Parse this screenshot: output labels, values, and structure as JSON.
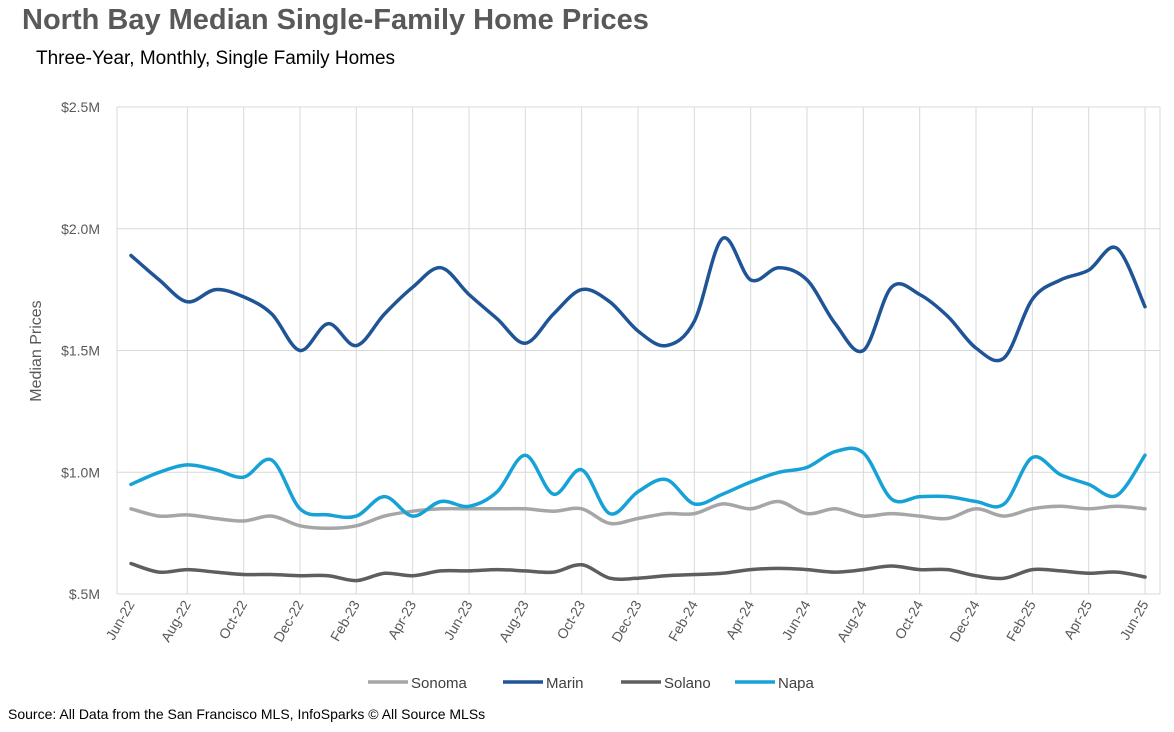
{
  "title": "North Bay Median Single-Family Home Prices",
  "subtitle": "Three-Year, Monthly, Single Family Homes",
  "source": "Source: All Data from the San Francisco MLS, InfoSparks © All Source MLSs",
  "chart_data": {
    "type": "line",
    "title": "North Bay Median Single-Family Home Prices",
    "subtitle": "Three-Year, Monthly, Single Family Homes",
    "ylabel": "Median Prices",
    "xlabel": "",
    "ylim": [
      500000,
      2500000
    ],
    "yticks": [
      {
        "value": 500000,
        "label": "$.5M"
      },
      {
        "value": 1000000,
        "label": "$1.0M"
      },
      {
        "value": 1500000,
        "label": "$1.5M"
      },
      {
        "value": 2000000,
        "label": "$2.0M"
      },
      {
        "value": 2500000,
        "label": "$2.5M"
      }
    ],
    "grid": true,
    "legend_position": "bottom",
    "x": [
      "Jun-22",
      "Jul-22",
      "Aug-22",
      "Sep-22",
      "Oct-22",
      "Nov-22",
      "Dec-22",
      "Jan-23",
      "Feb-23",
      "Mar-23",
      "Apr-23",
      "May-23",
      "Jun-23",
      "Jul-23",
      "Aug-23",
      "Sep-23",
      "Oct-23",
      "Nov-23",
      "Dec-23",
      "Jan-24",
      "Feb-24",
      "Mar-24",
      "Apr-24",
      "May-24",
      "Jun-24",
      "Jul-24",
      "Aug-24",
      "Sep-24",
      "Oct-24",
      "Nov-24",
      "Dec-24",
      "Jan-25",
      "Feb-25",
      "Mar-25",
      "Apr-25",
      "May-25",
      "Jun-25"
    ],
    "xtick_labels": [
      "Jun-22",
      "Aug-22",
      "Oct-22",
      "Dec-22",
      "Feb-23",
      "Apr-23",
      "Jun-23",
      "Aug-23",
      "Oct-23",
      "Dec-23",
      "Feb-24",
      "Apr-24",
      "Jun-24",
      "Aug-24",
      "Oct-24",
      "Dec-24",
      "Feb-25",
      "Apr-25",
      "Jun-25"
    ],
    "series": [
      {
        "name": "Sonoma",
        "color": "#a6a6a6",
        "values": [
          850000,
          820000,
          825000,
          810000,
          800000,
          820000,
          780000,
          770000,
          780000,
          820000,
          840000,
          850000,
          850000,
          850000,
          850000,
          840000,
          850000,
          790000,
          810000,
          830000,
          830000,
          870000,
          850000,
          880000,
          830000,
          850000,
          820000,
          830000,
          820000,
          810000,
          850000,
          820000,
          850000,
          860000,
          850000,
          860000,
          850000
        ]
      },
      {
        "name": "Marin",
        "color": "#1f5496",
        "values": [
          1890000,
          1790000,
          1700000,
          1750000,
          1720000,
          1650000,
          1500000,
          1610000,
          1520000,
          1650000,
          1760000,
          1840000,
          1730000,
          1630000,
          1530000,
          1650000,
          1750000,
          1700000,
          1580000,
          1520000,
          1620000,
          1960000,
          1790000,
          1840000,
          1790000,
          1610000,
          1500000,
          1760000,
          1730000,
          1640000,
          1510000,
          1470000,
          1710000,
          1790000,
          1830000,
          1920000,
          1680000
        ]
      },
      {
        "name": "Solano",
        "color": "#5e5e5e",
        "values": [
          625000,
          590000,
          600000,
          590000,
          580000,
          580000,
          575000,
          575000,
          555000,
          585000,
          575000,
          595000,
          595000,
          600000,
          595000,
          590000,
          620000,
          565000,
          565000,
          575000,
          580000,
          585000,
          600000,
          605000,
          600000,
          590000,
          600000,
          615000,
          600000,
          600000,
          575000,
          565000,
          600000,
          595000,
          585000,
          590000,
          570000
        ]
      },
      {
        "name": "Napa",
        "color": "#17a2d7",
        "values": [
          950000,
          1000000,
          1030000,
          1010000,
          980000,
          1050000,
          850000,
          825000,
          820000,
          900000,
          820000,
          880000,
          860000,
          920000,
          1070000,
          910000,
          1010000,
          830000,
          920000,
          970000,
          870000,
          910000,
          960000,
          1000000,
          1020000,
          1085000,
          1080000,
          890000,
          900000,
          900000,
          880000,
          870000,
          1060000,
          990000,
          950000,
          905000,
          1070000
        ]
      }
    ]
  }
}
